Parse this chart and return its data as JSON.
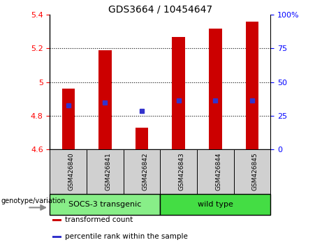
{
  "title": "GDS3664 / 10454647",
  "samples": [
    "GSM426840",
    "GSM426841",
    "GSM426842",
    "GSM426843",
    "GSM426844",
    "GSM426845"
  ],
  "bar_values": [
    4.96,
    5.19,
    4.73,
    5.27,
    5.32,
    5.36
  ],
  "bar_base": 4.6,
  "percentile_values": [
    4.86,
    4.88,
    4.83,
    4.89,
    4.89,
    4.89
  ],
  "ylim": [
    4.6,
    5.4
  ],
  "yticks_left": [
    4.6,
    4.8,
    5.0,
    5.2,
    5.4
  ],
  "yticks_left_labels": [
    "4.6",
    "4.8",
    "5",
    "5.2",
    "5.4"
  ],
  "yticks_right": [
    0,
    25,
    50,
    75,
    100
  ],
  "yticks_right_labels": [
    "0",
    "25",
    "50",
    "75",
    "100%"
  ],
  "bar_color": "#cc0000",
  "percentile_color": "#3333cc",
  "groups": [
    {
      "label": "SOCS-3 transgenic",
      "indices": [
        0,
        1,
        2
      ],
      "color": "#88ee88"
    },
    {
      "label": "wild type",
      "indices": [
        3,
        4,
        5
      ],
      "color": "#44dd44"
    }
  ],
  "legend_items": [
    {
      "label": "transformed count",
      "color": "#cc0000"
    },
    {
      "label": "percentile rank within the sample",
      "color": "#3333cc"
    }
  ],
  "genotype_label": "genotype/variation",
  "bar_width": 0.35
}
